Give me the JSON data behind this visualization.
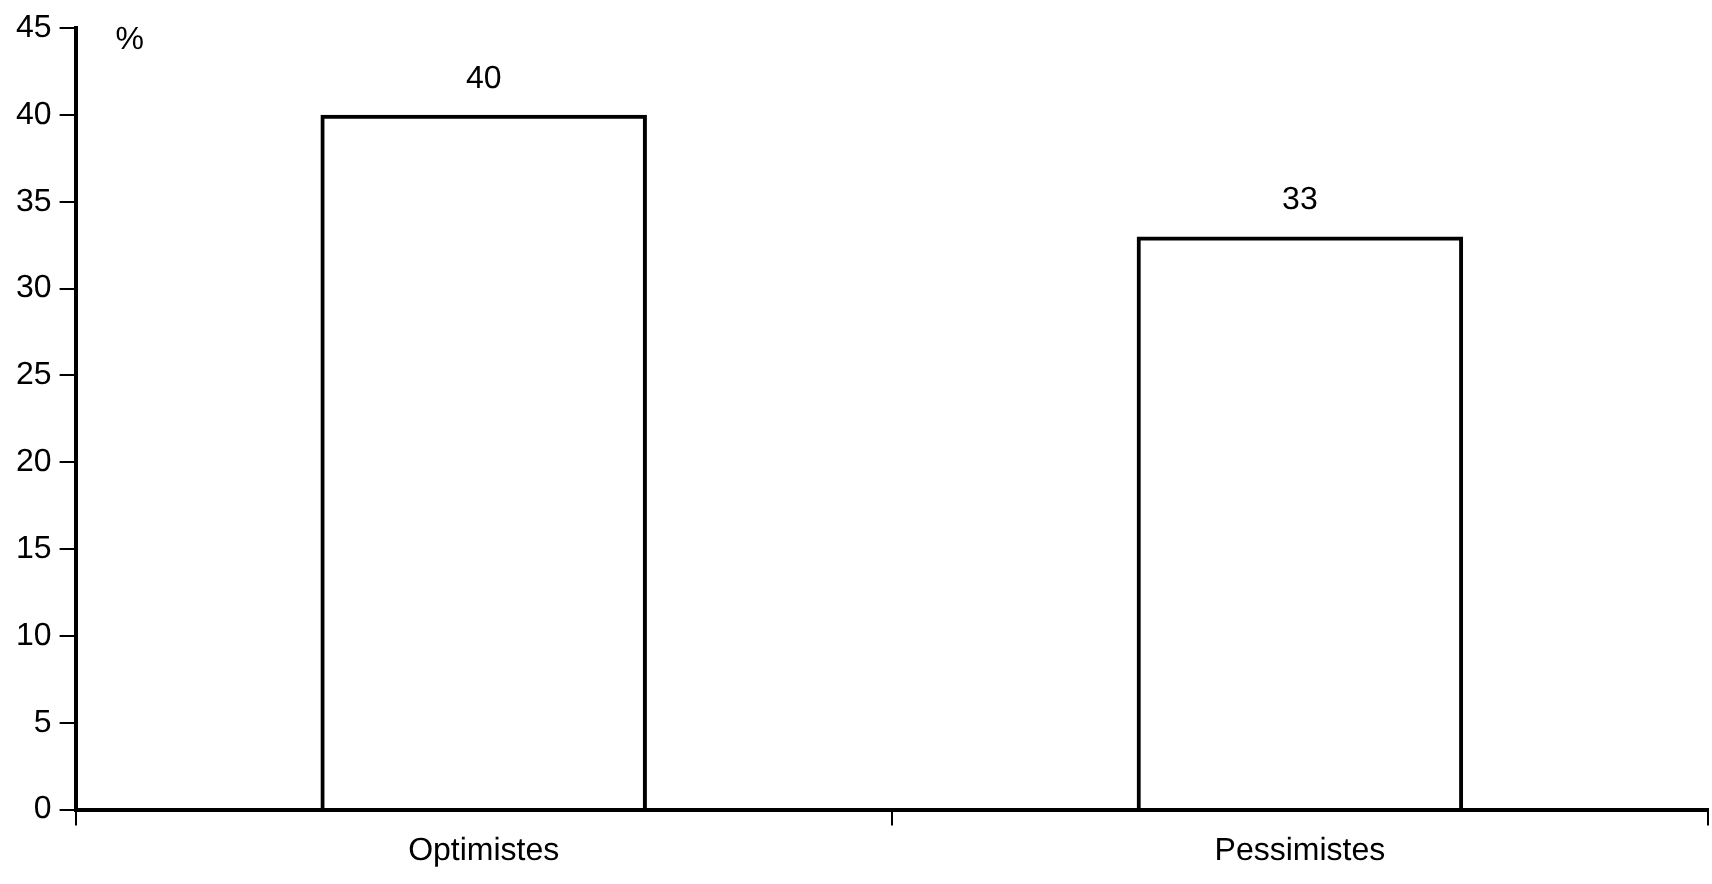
{
  "chart_data": {
    "type": "bar",
    "ylabel": "%",
    "categories": [
      "Optimistes",
      "Pessimistes"
    ],
    "values": [
      40,
      33
    ],
    "color": "#000000",
    "ylim": [
      0,
      45
    ],
    "yticks": [
      0,
      5,
      10,
      15,
      20,
      25,
      30,
      35,
      40,
      45
    ],
    "data_labels": true,
    "grid": false,
    "legend": false
  }
}
